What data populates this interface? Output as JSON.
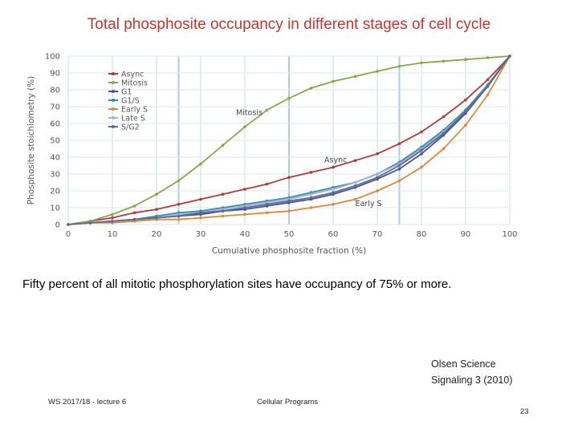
{
  "slide": {
    "title": "Total phosphosite occupancy in different stages of cell cycle",
    "caption": "Fifty percent of all mitotic phosphorylation sites have occupancy of 75% or more.",
    "citation_line1": "Olsen Science",
    "citation_line2": "Signaling 3 (2010)",
    "footer_left": "WS 2017/18 - lecture 6",
    "footer_center": "Cellular Programs",
    "page_number": "23"
  },
  "chart_data": {
    "type": "line",
    "xlabel": "Cumulative phosphosite fraction (%)",
    "ylabel": "Phosphosite stoichiometry (%)",
    "xlim": [
      0,
      100
    ],
    "ylim": [
      0,
      100
    ],
    "xticks": [
      "0",
      "10",
      "20",
      "30",
      "40",
      "50",
      "60",
      "70",
      "80",
      "90",
      "100"
    ],
    "yticks": [
      "0",
      "10",
      "20",
      "30",
      "40",
      "50",
      "60",
      "70",
      "80",
      "90",
      "100"
    ],
    "grid": "vertical and horizontal light blue lines",
    "legend_position": "top-left",
    "annotations": [
      {
        "text": "Mitosis",
        "x": 38,
        "y": 65
      },
      {
        "text": "Async",
        "x": 58,
        "y": 37
      },
      {
        "text": "Early S",
        "x": 65,
        "y": 11
      }
    ],
    "series": [
      {
        "name": "Async",
        "color": "#b03a3a",
        "x": [
          0,
          5,
          10,
          15,
          20,
          25,
          30,
          35,
          40,
          45,
          50,
          55,
          60,
          65,
          70,
          75,
          80,
          85,
          90,
          95,
          100
        ],
        "y": [
          0,
          2,
          4,
          7,
          9,
          12,
          15,
          18,
          21,
          24,
          28,
          31,
          34,
          38,
          42,
          48,
          55,
          64,
          74,
          86,
          100
        ]
      },
      {
        "name": "Mitosis",
        "color": "#86a84a",
        "x": [
          0,
          5,
          10,
          15,
          20,
          25,
          30,
          35,
          40,
          45,
          50,
          55,
          60,
          65,
          70,
          75,
          80,
          85,
          90,
          95,
          100
        ],
        "y": [
          0,
          2,
          6,
          11,
          18,
          26,
          36,
          47,
          58,
          68,
          75,
          81,
          85,
          88,
          91,
          94,
          96,
          97,
          98,
          99,
          100
        ]
      },
      {
        "name": "G1",
        "color": "#4b4e8e",
        "x": [
          0,
          5,
          10,
          15,
          20,
          25,
          30,
          35,
          40,
          45,
          50,
          55,
          60,
          65,
          70,
          75,
          80,
          85,
          90,
          95,
          100
        ],
        "y": [
          0,
          1,
          2,
          3,
          4,
          5,
          6,
          8,
          9,
          11,
          13,
          15,
          18,
          22,
          27,
          33,
          42,
          53,
          66,
          82,
          100
        ]
      },
      {
        "name": "G1/S",
        "color": "#3b8aa8",
        "x": [
          0,
          5,
          10,
          15,
          20,
          25,
          30,
          35,
          40,
          45,
          50,
          55,
          60,
          65,
          70,
          75,
          80,
          85,
          90,
          95,
          100
        ],
        "y": [
          0,
          1,
          2,
          3,
          5,
          7,
          8,
          10,
          12,
          14,
          16,
          19,
          22,
          25,
          30,
          37,
          46,
          56,
          68,
          83,
          100
        ]
      },
      {
        "name": "Early S",
        "color": "#d98a3a",
        "x": [
          0,
          5,
          10,
          15,
          20,
          25,
          30,
          35,
          40,
          45,
          50,
          55,
          60,
          65,
          70,
          75,
          80,
          85,
          90,
          95,
          100
        ],
        "y": [
          0,
          1,
          1,
          2,
          3,
          3,
          4,
          5,
          6,
          7,
          8,
          10,
          12,
          15,
          20,
          26,
          34,
          45,
          59,
          77,
          100
        ]
      },
      {
        "name": "Late S",
        "color": "#9ab5d8",
        "x": [
          0,
          5,
          10,
          15,
          20,
          25,
          30,
          35,
          40,
          45,
          50,
          55,
          60,
          65,
          70,
          75,
          80,
          85,
          90,
          95,
          100
        ],
        "y": [
          0,
          1,
          2,
          3,
          4,
          6,
          7,
          9,
          11,
          13,
          15,
          18,
          21,
          25,
          30,
          36,
          45,
          55,
          67,
          82,
          100
        ]
      },
      {
        "name": "S/G2",
        "color": "#5a6a92",
        "x": [
          0,
          5,
          10,
          15,
          20,
          25,
          30,
          35,
          40,
          45,
          50,
          55,
          60,
          65,
          70,
          75,
          80,
          85,
          90,
          95,
          100
        ],
        "y": [
          0,
          1,
          2,
          3,
          4,
          5,
          7,
          8,
          10,
          12,
          14,
          16,
          19,
          23,
          28,
          35,
          44,
          54,
          67,
          82,
          100
        ]
      }
    ]
  }
}
